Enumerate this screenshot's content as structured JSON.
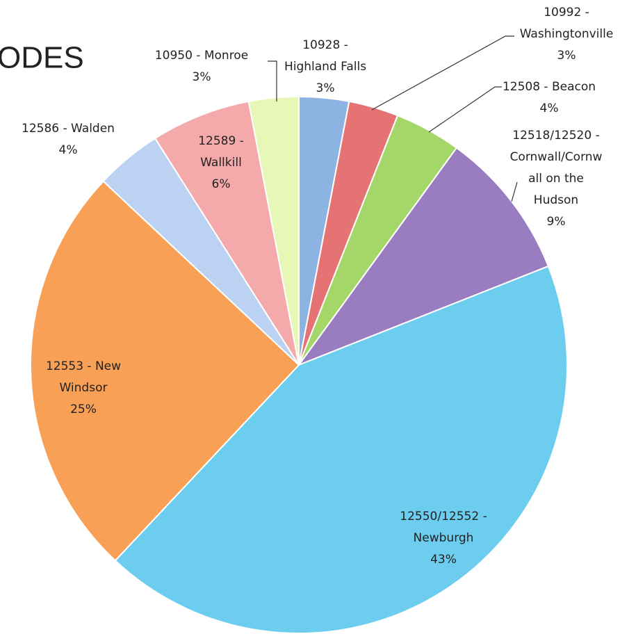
{
  "chart_data": {
    "type": "pie",
    "title": "ODES",
    "categories": [
      [
        "10928 -",
        "Highland Falls"
      ],
      [
        "10992 -",
        "Washingtonville"
      ],
      [
        "12508 - Beacon"
      ],
      [
        "12518/12520 -",
        "Cornwall/Cornw",
        "all on the",
        "Hudson"
      ],
      [
        "12550/12552 -",
        "Newburgh"
      ],
      [
        "12553 - New",
        "Windsor"
      ],
      [
        "12586 - Walden"
      ],
      [
        "12589 -",
        "Wallkill"
      ],
      [
        "10950 - Monroe"
      ]
    ],
    "values": [
      3,
      3,
      4,
      9,
      43,
      25,
      4,
      6,
      3
    ],
    "value_labels": [
      "3%",
      "3%",
      "4%",
      "9%",
      "43%",
      "25%",
      "4%",
      "6%",
      "3%"
    ],
    "colors": [
      "#8db3e2",
      "#e57373",
      "#a5d66a",
      "#9a7cc0",
      "#6dcdef",
      "#f7a056",
      "#bcd2f2",
      "#f4aaaa",
      "#e6f7b8"
    ]
  }
}
